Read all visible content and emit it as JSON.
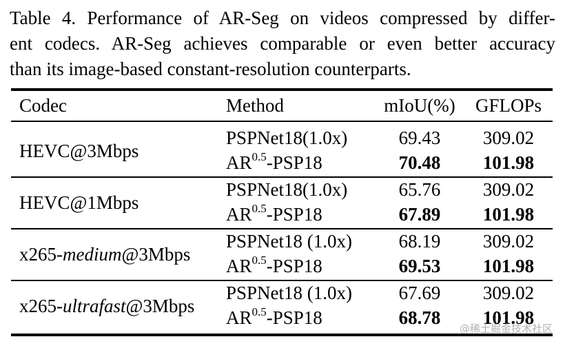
{
  "caption": {
    "line1": "Table 4. Performance of AR-Seg on videos compressed by differ-",
    "line2": "ent codecs. AR-Seg achieves comparable or even better accuracy",
    "line3": "than its image-based constant-resolution counterparts."
  },
  "table": {
    "headers": {
      "codec": "Codec",
      "method": "Method",
      "miou": "mIoU(%)",
      "gflops": "GFLOPs"
    },
    "groups": [
      {
        "codec_pre": "HEVC@3Mbps",
        "codec_it": "",
        "codec_post": "",
        "rows": [
          {
            "method_base": "PSPNet18(1.0x)",
            "method_sup": "",
            "method_suffix": "",
            "miou": "69.43",
            "gflops": "309.02"
          },
          {
            "method_base": "AR",
            "method_sup": "0.5",
            "method_suffix": "-PSP18",
            "miou": "70.48",
            "gflops": "101.98"
          }
        ]
      },
      {
        "codec_pre": "HEVC@1Mbps",
        "codec_it": "",
        "codec_post": "",
        "rows": [
          {
            "method_base": "PSPNet18(1.0x)",
            "method_sup": "",
            "method_suffix": "",
            "miou": "65.76",
            "gflops": "309.02"
          },
          {
            "method_base": "AR",
            "method_sup": "0.5",
            "method_suffix": "-PSP18",
            "miou": "67.89",
            "gflops": "101.98"
          }
        ]
      },
      {
        "codec_pre": "x265-",
        "codec_it": "medium",
        "codec_post": "@3Mbps",
        "rows": [
          {
            "method_base": "PSPNet18 (1.0x)",
            "method_sup": "",
            "method_suffix": "",
            "miou": "68.19",
            "gflops": "309.02"
          },
          {
            "method_base": "AR",
            "method_sup": "0.5",
            "method_suffix": "-PSP18",
            "miou": "69.53",
            "gflops": "101.98"
          }
        ]
      },
      {
        "codec_pre": "x265-",
        "codec_it": "ultrafast",
        "codec_post": "@3Mbps",
        "rows": [
          {
            "method_base": "PSPNet18 (1.0x)",
            "method_sup": "",
            "method_suffix": "",
            "miou": "67.69",
            "gflops": "309.02"
          },
          {
            "method_base": "AR",
            "method_sup": "0.5",
            "method_suffix": "-PSP18",
            "miou": "68.78",
            "gflops": "101.98"
          }
        ]
      }
    ]
  },
  "watermark": "@稀土掘金技术社区"
}
